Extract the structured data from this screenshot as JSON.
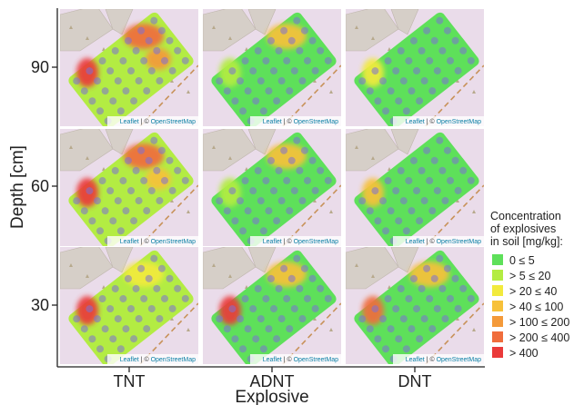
{
  "chart_data": {
    "type": "heatmap",
    "title": "",
    "xlabel": "Explosive",
    "ylabel": "Depth [cm]",
    "x_categories": [
      "TNT",
      "ADNT",
      "DNT"
    ],
    "y_categories": [
      "90",
      "60",
      "30"
    ],
    "y_unit": "cm",
    "attribution": {
      "prefix": "Leaflet",
      "separator": " | © ",
      "source": "OpenStreetMap"
    },
    "legend": {
      "title_lines": [
        "Concentration",
        "of explosives",
        "in soil [mg/kg]:"
      ],
      "placement": "right",
      "classes": [
        {
          "label": "0 ≤ 5",
          "color": "#5ee05a"
        },
        {
          "label": "> 5 ≤ 20",
          "color": "#b3ec43"
        },
        {
          "label": "> 20 ≤ 40",
          "color": "#f2ea3d"
        },
        {
          "label": "> 40 ≤ 100",
          "color": "#f7c13a"
        },
        {
          "label": "> 100 ≤ 200",
          "color": "#f49a3a"
        },
        {
          "label": "> 200 ≤ 400",
          "color": "#f06d3c"
        },
        {
          "label": "> 400",
          "color": "#ea3a3a"
        }
      ]
    },
    "panels": [
      {
        "explosive": "TNT",
        "depth_cm": 90,
        "dominant_class": "> 5 ≤ 20",
        "hotspot_classes": [
          "> 400",
          "> 200 ≤ 400",
          "> 100 ≤ 200"
        ]
      },
      {
        "explosive": "ADNT",
        "depth_cm": 90,
        "dominant_class": "0 ≤ 5",
        "hotspot_classes": [
          "> 5 ≤ 20",
          "> 40 ≤ 100"
        ]
      },
      {
        "explosive": "DNT",
        "depth_cm": 90,
        "dominant_class": "0 ≤ 5",
        "hotspot_classes": [
          "> 20 ≤ 40"
        ]
      },
      {
        "explosive": "TNT",
        "depth_cm": 60,
        "dominant_class": "> 5 ≤ 20",
        "hotspot_classes": [
          "> 400",
          "> 200 ≤ 400",
          "> 40 ≤ 100"
        ]
      },
      {
        "explosive": "ADNT",
        "depth_cm": 60,
        "dominant_class": "0 ≤ 5",
        "hotspot_classes": [
          "> 5 ≤ 20",
          "> 40 ≤ 100"
        ]
      },
      {
        "explosive": "DNT",
        "depth_cm": 60,
        "dominant_class": "0 ≤ 5",
        "hotspot_classes": [
          "> 40 ≤ 100"
        ]
      },
      {
        "explosive": "TNT",
        "depth_cm": 30,
        "dominant_class": "> 5 ≤ 20",
        "hotspot_classes": [
          "> 400",
          "> 20 ≤ 40"
        ]
      },
      {
        "explosive": "ADNT",
        "depth_cm": 30,
        "dominant_class": "0 ≤ 5",
        "hotspot_classes": [
          "> 400",
          "> 40 ≤ 100"
        ]
      },
      {
        "explosive": "DNT",
        "depth_cm": 30,
        "dominant_class": "0 ≤ 5",
        "hotspot_classes": [
          "> 200 ≤ 400",
          "> 40 ≤ 100"
        ]
      }
    ],
    "grid": false,
    "colors": {
      "map_background": "#eadcea",
      "building": "#d6cfc8",
      "sample_point": "#7b6fd6",
      "path": "#c8925a",
      "attribution_link": "#0a7fa5"
    }
  }
}
